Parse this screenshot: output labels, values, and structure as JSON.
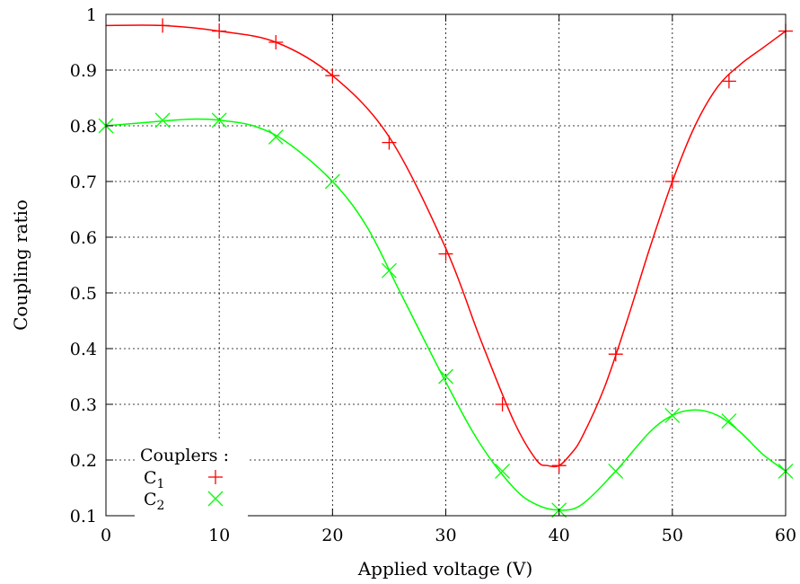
{
  "chart_data": {
    "type": "line",
    "xlabel": "Applied voltage (V)",
    "ylabel": "Coupling ratio",
    "xlim": [
      0,
      60
    ],
    "ylim": [
      0.1,
      1.0
    ],
    "x_ticks": [
      "0",
      "10",
      "20",
      "30",
      "40",
      "50",
      "60"
    ],
    "y_ticks": [
      "0.1",
      "0.2",
      "0.3",
      "0.4",
      "0.5",
      "0.6",
      "0.7",
      "0.8",
      "0.9",
      "1"
    ],
    "grid": true,
    "legend": {
      "title": "Couplers :",
      "placement": "bottom-left"
    },
    "series": [
      {
        "name": "C",
        "subscript": "1",
        "color": "#ff0000",
        "marker": "plus",
        "x": [
          5,
          10,
          15,
          20,
          25,
          30,
          35,
          40,
          45,
          50,
          55,
          60
        ],
        "y": [
          0.98,
          0.97,
          0.95,
          0.89,
          0.77,
          0.57,
          0.3,
          0.19,
          0.39,
          0.7,
          0.88,
          0.97
        ],
        "fit_x": [
          0,
          5,
          10,
          15,
          20,
          25,
          30,
          33,
          36,
          38,
          39,
          40,
          41,
          42,
          44,
          46,
          48,
          50,
          52,
          54,
          56,
          58,
          60
        ],
        "fit_y": [
          0.98,
          0.98,
          0.97,
          0.95,
          0.89,
          0.78,
          0.58,
          0.42,
          0.27,
          0.2,
          0.19,
          0.19,
          0.21,
          0.24,
          0.33,
          0.45,
          0.58,
          0.7,
          0.8,
          0.87,
          0.91,
          0.94,
          0.97
        ]
      },
      {
        "name": "C",
        "subscript": "2",
        "color": "#00ff00",
        "marker": "cross",
        "x": [
          0,
          5,
          10,
          15,
          20,
          25,
          30,
          35,
          40,
          45,
          50,
          55,
          60
        ],
        "y": [
          0.8,
          0.81,
          0.81,
          0.78,
          0.7,
          0.54,
          0.35,
          0.18,
          0.11,
          0.18,
          0.28,
          0.27,
          0.18
        ],
        "fit_x": [
          0,
          3,
          6,
          8,
          10,
          13,
          16,
          20,
          23,
          26,
          30,
          33,
          36,
          38,
          40,
          42,
          45,
          48,
          50,
          52,
          54,
          56,
          58,
          60
        ],
        "fit_y": [
          0.8,
          0.805,
          0.81,
          0.812,
          0.81,
          0.8,
          0.77,
          0.7,
          0.62,
          0.5,
          0.34,
          0.23,
          0.15,
          0.12,
          0.11,
          0.12,
          0.18,
          0.25,
          0.28,
          0.29,
          0.28,
          0.25,
          0.21,
          0.18
        ]
      }
    ]
  }
}
